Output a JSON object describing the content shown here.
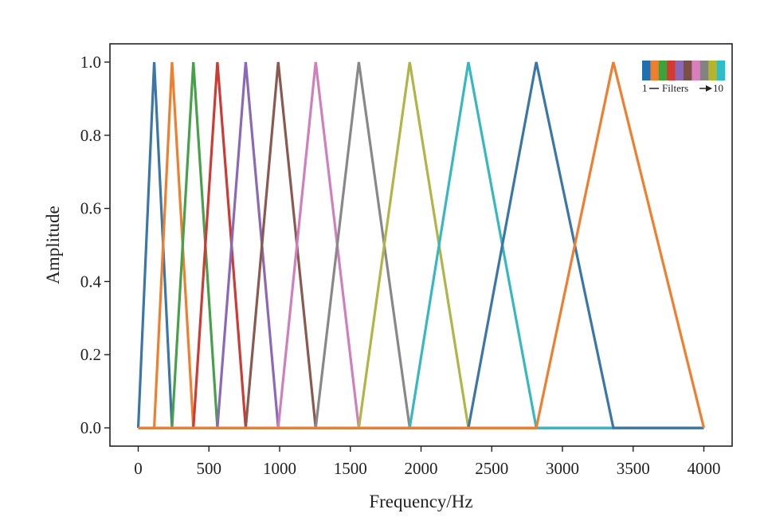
{
  "chart_data": {
    "type": "line",
    "title": "",
    "xlabel": "Frequency/Hz",
    "ylabel": "Amplitude",
    "xlim": [
      -200,
      4200
    ],
    "ylim": [
      -0.05,
      1.05
    ],
    "xticks": [
      0,
      500,
      1000,
      1500,
      2000,
      2500,
      3000,
      3500,
      4000
    ],
    "xtick_labels": [
      "0",
      "500",
      "1000",
      "1500",
      "2000",
      "2500",
      "3000",
      "3500",
      "4000"
    ],
    "yticks": [
      0.0,
      0.2,
      0.4,
      0.6,
      0.8,
      1.0
    ],
    "ytick_labels": [
      "0.0",
      "0.2",
      "0.4",
      "0.6",
      "0.8",
      "1.0"
    ],
    "grid": false,
    "legend": {
      "placement": "top-right",
      "start_label": "1",
      "middle_label": "Filters",
      "end_label": "10",
      "swatches": [
        "#1f6fb4",
        "#ef7f2e",
        "#3aa33a",
        "#d43a32",
        "#8a68b8",
        "#7b4f46",
        "#d97fc0",
        "#838383",
        "#b4b52c",
        "#2dbdc8"
      ]
    },
    "series": [
      {
        "color": "#3b76a8",
        "x": [
          0,
          113,
          239
        ],
        "y": [
          0,
          1,
          0
        ]
      },
      {
        "color": "#ef7f2e",
        "x": [
          113,
          239,
          390
        ],
        "y": [
          0,
          1,
          0
        ]
      },
      {
        "color": "#47a04a",
        "x": [
          239,
          390,
          560
        ],
        "y": [
          0,
          1,
          0
        ]
      },
      {
        "color": "#cf3b34",
        "x": [
          390,
          560,
          760
        ],
        "y": [
          0,
          1,
          0
        ]
      },
      {
        "color": "#8c69b6",
        "x": [
          560,
          760,
          990
        ],
        "y": [
          0,
          1,
          0
        ]
      },
      {
        "color": "#8a5a50",
        "x": [
          760,
          990,
          1255
        ],
        "y": [
          0,
          1,
          0
        ]
      },
      {
        "color": "#cf7fbe",
        "x": [
          990,
          1255,
          1560
        ],
        "y": [
          0,
          1,
          0
        ]
      },
      {
        "color": "#888888",
        "x": [
          1255,
          1560,
          1920
        ],
        "y": [
          0,
          1,
          0
        ]
      },
      {
        "color": "#b1b446",
        "x": [
          1560,
          1920,
          2335
        ],
        "y": [
          0,
          1,
          0
        ]
      },
      {
        "color": "#36b8c2",
        "x": [
          1920,
          2335,
          2815
        ],
        "y": [
          0,
          1,
          0
        ]
      },
      {
        "color": "#3b76a8",
        "x": [
          2335,
          2815,
          3360
        ],
        "y": [
          0,
          1,
          0
        ]
      },
      {
        "color": "#ef7f2e",
        "x": [
          2815,
          3360,
          4000
        ],
        "y": [
          0,
          1,
          0
        ]
      }
    ]
  }
}
